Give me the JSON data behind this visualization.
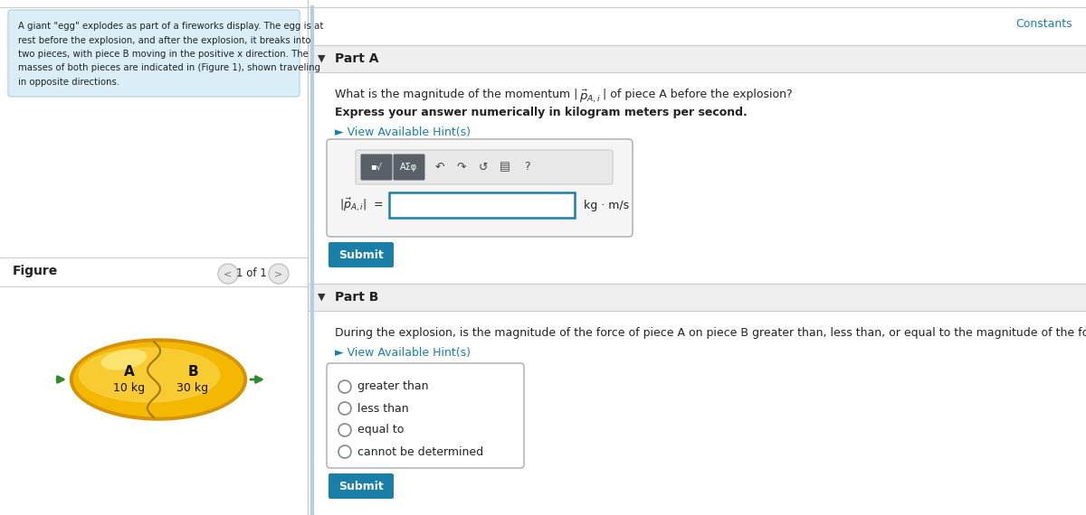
{
  "bg_color": "#f5f5f5",
  "white": "#ffffff",
  "panel_bg": "#daeef7",
  "divider_color": "#cccccc",
  "submit_bg": "#1a7fa8",
  "submit_text": "#ffffff",
  "text_color": "#222222",
  "hint_color": "#1a7fa8",
  "constants_color": "#1a7fa8",
  "input_border": "#1a7fa8",
  "context_text_lines": [
    "A giant \"egg\" explodes as part of a fireworks display. The egg is at",
    "rest before the explosion, and after the explosion, it breaks into",
    "two pieces, with piece B moving in the positive x direction. The",
    "masses of both pieces are indicated in (Figure 1), shown traveling",
    "in opposite directions."
  ],
  "figure_label": "Figure",
  "nav_text": "1 of 1",
  "part_a_label": "Part A",
  "part_a_q1": "What is the magnitude of the momentum |",
  "part_a_q2": "| of piece A before the explosion?",
  "part_a_bold": "Express your answer numerically in kilogram meters per second.",
  "part_a_hint": "► View Available Hint(s)",
  "part_a_units": "kg · m/s",
  "part_b_label": "Part B",
  "part_b_question": "During the explosion, is the magnitude of the force of piece A on piece B greater than, less than, or equal to the magnitude of the force of piece B on piece A?",
  "part_b_hint": "► View Available Hint(s)",
  "radio_options": [
    "greater than",
    "less than",
    "equal to",
    "cannot be determined"
  ],
  "submit_label": "Submit",
  "egg_color_outer": "#d4920a",
  "egg_color_inner": "#f5b800",
  "egg_color_light": "#fad44a",
  "egg_highlight": "#fde87a",
  "arrow_color": "#2d8a2d",
  "mass_A": "10 kg",
  "mass_B": "30 kg",
  "label_A": "A",
  "label_B": "B"
}
